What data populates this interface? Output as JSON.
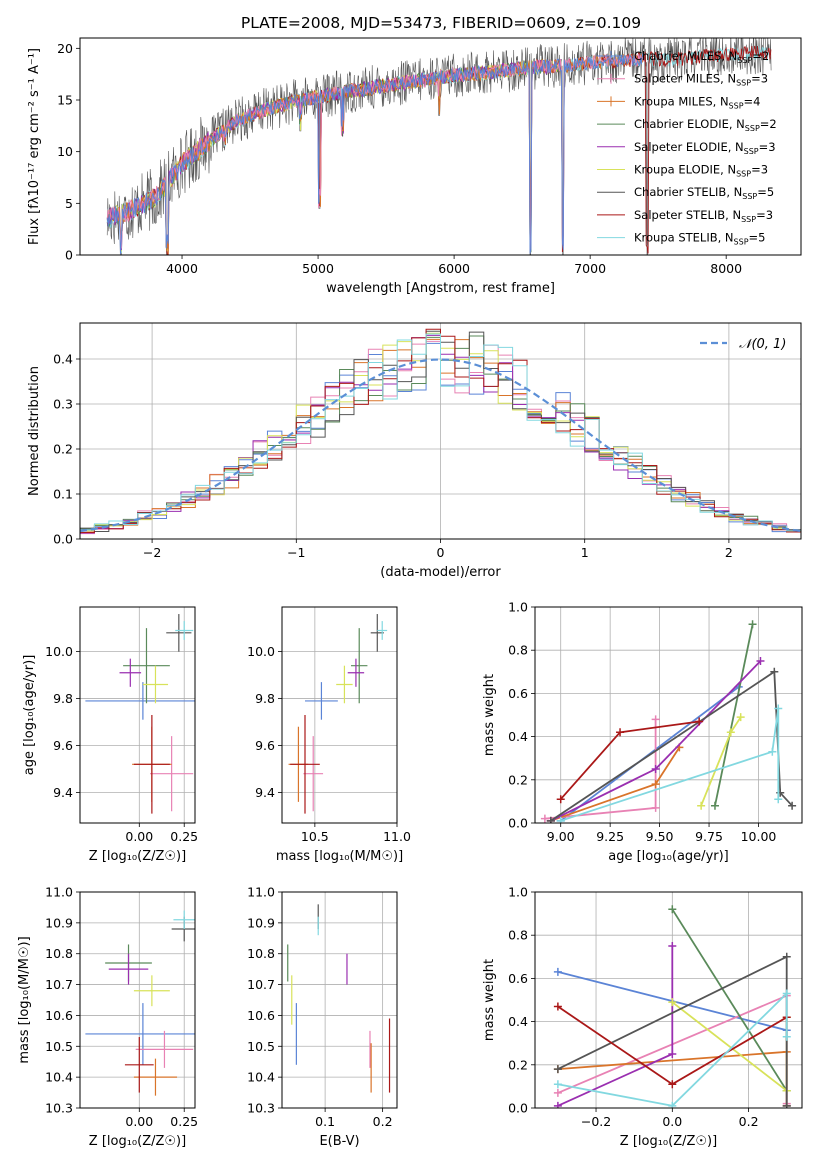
{
  "figure_title": "PLATE=2008, MJD=53473, FIBERID=0609, z=0.109",
  "colors": {
    "Chabrier MILES": "#5b84d6",
    "Salpeter MILES": "#e882b4",
    "Kroupa MILES": "#d9742a",
    "Chabrier ELODIE": "#5a8a5a",
    "Salpeter ELODIE": "#9a2fb0",
    "Kroupa ELODIE": "#d8e25a",
    "Chabrier STELIB": "#555555",
    "Salpeter STELIB": "#aa1818",
    "Kroupa STELIB": "#82d8e0",
    "gaussian": "#5b8fd6",
    "grid": "#b0b0b0"
  },
  "chart_data": [
    {
      "id": "spectrum",
      "type": "line",
      "title": "PLATE=2008, MJD=53473, FIBERID=0609, z=0.109",
      "xlabel": "wavelength [Angstrom, rest frame]",
      "ylabel": "Flux [fλ10⁻¹⁷ erg cm⁻² s⁻¹ A⁻¹]",
      "xlim": [
        3250,
        8550
      ],
      "ylim": [
        0,
        21
      ],
      "xticks": [
        4000,
        5000,
        6000,
        7000,
        8000
      ],
      "yticks": [
        0,
        5,
        10,
        15,
        20
      ],
      "grid": false,
      "legend_position": "right",
      "legend": [
        "Chabrier MILES, N_SSP=2",
        "Salpeter MILES, N_SSP=3",
        "Kroupa MILES, N_SSP=4",
        "Chabrier ELODIE, N_SSP=2",
        "Salpeter ELODIE, N_SSP=3",
        "Kroupa ELODIE, N_SSP=3",
        "Chabrier STELIB, N_SSP=5",
        "Salpeter STELIB, N_SSP=3",
        "Kroupa STELIB, N_SSP=5"
      ],
      "legend_display": [
        "Chabrier MILES, N",
        "Salpeter MILES, N",
        "Kroupa MILES, N",
        "Chabrier ELODIE, N",
        "Salpeter ELODIE, N",
        "Kroupa ELODIE, N",
        "Chabrier STELIB, N",
        "Salpeter STELIB, N",
        "Kroupa STELIB, N"
      ],
      "legend_sub": "SSP",
      "legend_counts": [
        "=2",
        "=3",
        "=4",
        "=2",
        "=3",
        "=3",
        "=5",
        "=3",
        "=5"
      ],
      "continuum": {
        "x": [
          3450,
          3600,
          3800,
          4000,
          4200,
          4400,
          4600,
          4800,
          5000,
          5200,
          5400,
          5600,
          5800,
          6000,
          6200,
          6400,
          6600,
          6800,
          7000,
          7200,
          7400,
          7600,
          7800,
          8000,
          8200,
          8330
        ],
        "y": [
          3.5,
          4.2,
          5.5,
          8.8,
          11.0,
          13.0,
          14.0,
          14.8,
          15.3,
          15.8,
          16.2,
          16.6,
          17.0,
          17.4,
          17.6,
          17.9,
          18.2,
          18.3,
          18.6,
          18.8,
          19.0,
          18.9,
          19.2,
          19.4,
          19.6,
          19.5
        ]
      },
      "dips": [
        {
          "x": 3550,
          "y": 0
        },
        {
          "x": 3890,
          "y": 0
        },
        {
          "x": 4310,
          "y": 10.5
        },
        {
          "x": 4870,
          "y": 12.0
        },
        {
          "x": 5010,
          "y": 4.5
        },
        {
          "x": 5180,
          "y": 11.5
        },
        {
          "x": 5890,
          "y": 13.5
        },
        {
          "x": 6560,
          "y": 0
        },
        {
          "x": 6800,
          "y": 0
        },
        {
          "x": 7420,
          "y": 0
        }
      ]
    },
    {
      "id": "residuals",
      "type": "histogram",
      "xlabel": "(data-model)/error",
      "ylabel": "Normed distribution",
      "xlim": [
        -2.5,
        2.5
      ],
      "ylim": [
        0,
        0.48
      ],
      "xticks": [
        -2,
        -1,
        0,
        1,
        2
      ],
      "yticks": [
        0.0,
        0.1,
        0.2,
        0.3,
        0.4
      ],
      "grid": true,
      "legend": [
        "𝒩(0, 1)"
      ],
      "legend_position": "top-right",
      "bin_width": 0.1,
      "bin_start": -2.5
    },
    {
      "id": "age_vs_Z",
      "type": "errorbar",
      "xlabel": "Z [log₁₀(Z/Z☉)]",
      "ylabel": "age  [log₁₀(age/yr)]",
      "xlim": [
        -0.33,
        0.31
      ],
      "ylim": [
        9.27,
        10.19
      ],
      "xticks": [
        0.0,
        0.25
      ],
      "yticks": [
        9.4,
        9.6,
        9.8,
        10.0
      ],
      "grid": true,
      "points": [
        {
          "model": "Chabrier MILES",
          "x": 0.02,
          "y": 9.79,
          "xerr": 0.32,
          "yerr": 0.08
        },
        {
          "model": "Salpeter MILES",
          "x": 0.18,
          "y": 9.48,
          "xerr": 0.12,
          "yerr": 0.16
        },
        {
          "model": "Kroupa MILES",
          "x": 0.07,
          "y": 9.52,
          "xerr": 0.11,
          "yerr": 0.16
        },
        {
          "model": "Chabrier ELODIE",
          "x": 0.04,
          "y": 9.94,
          "xerr": 0.13,
          "yerr": 0.16
        },
        {
          "model": "Salpeter ELODIE",
          "x": -0.05,
          "y": 9.91,
          "xerr": 0.06,
          "yerr": 0.06
        },
        {
          "model": "Kroupa ELODIE",
          "x": 0.09,
          "y": 9.86,
          "xerr": 0.07,
          "yerr": 0.08
        },
        {
          "model": "Chabrier STELIB",
          "x": 0.22,
          "y": 10.08,
          "xerr": 0.07,
          "yerr": 0.08
        },
        {
          "model": "Salpeter STELIB",
          "x": 0.07,
          "y": 9.52,
          "xerr": 0.1,
          "yerr": 0.21
        },
        {
          "model": "Kroupa STELIB",
          "x": 0.25,
          "y": 10.09,
          "xerr": 0.05,
          "yerr": 0.04
        }
      ]
    },
    {
      "id": "age_vs_mass",
      "type": "errorbar",
      "xlabel": "mass [log₁₀(M/M☉)]",
      "ylabel": "",
      "xlim": [
        10.3,
        11.0
      ],
      "ylim": [
        9.27,
        10.19
      ],
      "xticks": [
        10.5,
        11.0
      ],
      "yticks": [
        9.4,
        9.6,
        9.8,
        10.0
      ],
      "grid": true,
      "points": [
        {
          "model": "Chabrier MILES",
          "x": 10.54,
          "y": 9.79,
          "xerr": 0.1,
          "yerr": 0.08
        },
        {
          "model": "Salpeter MILES",
          "x": 10.49,
          "y": 9.48,
          "xerr": 0.06,
          "yerr": 0.16
        },
        {
          "model": "Kroupa MILES",
          "x": 10.4,
          "y": 9.52,
          "xerr": 0.06,
          "yerr": 0.16
        },
        {
          "model": "Chabrier ELODIE",
          "x": 10.77,
          "y": 9.94,
          "xerr": 0.05,
          "yerr": 0.16
        },
        {
          "model": "Salpeter ELODIE",
          "x": 10.75,
          "y": 9.91,
          "xerr": 0.05,
          "yerr": 0.06
        },
        {
          "model": "Kroupa ELODIE",
          "x": 10.68,
          "y": 9.86,
          "xerr": 0.05,
          "yerr": 0.08
        },
        {
          "model": "Chabrier STELIB",
          "x": 10.88,
          "y": 10.08,
          "xerr": 0.04,
          "yerr": 0.08
        },
        {
          "model": "Salpeter STELIB",
          "x": 10.44,
          "y": 9.52,
          "xerr": 0.09,
          "yerr": 0.21
        },
        {
          "model": "Kroupa STELIB",
          "x": 10.91,
          "y": 10.09,
          "xerr": 0.03,
          "yerr": 0.04
        }
      ]
    },
    {
      "id": "massweight_vs_age",
      "type": "line",
      "xlabel": "age  [log₁₀(age/yr)]",
      "ylabel": "mass weight",
      "xlim": [
        8.87,
        10.22
      ],
      "ylim": [
        0,
        1.0
      ],
      "xticks": [
        9.0,
        9.25,
        9.5,
        9.75,
        10.0
      ],
      "yticks": [
        0.0,
        0.2,
        0.4,
        0.6,
        0.8,
        1.0
      ],
      "grid": true,
      "series": [
        {
          "model": "Chabrier MILES",
          "x": [
            9.0,
            9.9
          ],
          "y": [
            0.01,
            0.63
          ]
        },
        {
          "model": "Salpeter MILES",
          "x": [
            8.92,
            9.48,
            9.48
          ],
          "y": [
            0.02,
            0.07,
            0.48
          ]
        },
        {
          "model": "Kroupa MILES",
          "x": [
            8.95,
            9.48,
            9.6
          ],
          "y": [
            0.01,
            0.18,
            0.35
          ]
        },
        {
          "model": "Chabrier ELODIE",
          "x": [
            9.78,
            9.97
          ],
          "y": [
            0.08,
            0.92
          ]
        },
        {
          "model": "Salpeter ELODIE",
          "x": [
            8.95,
            9.48,
            10.01
          ],
          "y": [
            0.01,
            0.25,
            0.75
          ]
        },
        {
          "model": "Kroupa ELODIE",
          "x": [
            9.71,
            9.86,
            9.91
          ],
          "y": [
            0.08,
            0.42,
            0.49
          ]
        },
        {
          "model": "Chabrier STELIB",
          "x": [
            8.95,
            10.08,
            10.11,
            10.17
          ],
          "y": [
            0.01,
            0.7,
            0.14,
            0.08
          ]
        },
        {
          "model": "Salpeter STELIB",
          "x": [
            9.0,
            9.3,
            9.7
          ],
          "y": [
            0.11,
            0.42,
            0.47
          ]
        },
        {
          "model": "Kroupa STELIB",
          "x": [
            9.0,
            10.07,
            10.1,
            10.1
          ],
          "y": [
            0.01,
            0.33,
            0.53,
            0.11
          ]
        }
      ]
    },
    {
      "id": "mass_vs_Z",
      "type": "errorbar",
      "xlabel": "Z [log₁₀(Z/Z☉)]",
      "ylabel": "mass [log₁₀(M/M☉)]",
      "xlim": [
        -0.33,
        0.31
      ],
      "ylim": [
        10.3,
        11.0
      ],
      "xticks": [
        0.0,
        0.25
      ],
      "yticks": [
        10.3,
        10.4,
        10.5,
        10.6,
        10.7,
        10.8,
        10.9,
        11.0
      ],
      "grid": true,
      "points": [
        {
          "model": "Chabrier MILES",
          "x": 0.02,
          "y": 10.54,
          "xerr": 0.32,
          "yerr": 0.1
        },
        {
          "model": "Salpeter MILES",
          "x": 0.14,
          "y": 10.49,
          "xerr": 0.16,
          "yerr": 0.06
        },
        {
          "model": "Kroupa MILES",
          "x": 0.09,
          "y": 10.4,
          "xerr": 0.12,
          "yerr": 0.06
        },
        {
          "model": "Chabrier ELODIE",
          "x": -0.06,
          "y": 10.77,
          "xerr": 0.13,
          "yerr": 0.06
        },
        {
          "model": "Salpeter ELODIE",
          "x": -0.06,
          "y": 10.75,
          "xerr": 0.11,
          "yerr": 0.05
        },
        {
          "model": "Kroupa ELODIE",
          "x": 0.07,
          "y": 10.68,
          "xerr": 0.1,
          "yerr": 0.05
        },
        {
          "model": "Chabrier STELIB",
          "x": 0.25,
          "y": 10.88,
          "xerr": 0.07,
          "yerr": 0.04
        },
        {
          "model": "Salpeter STELIB",
          "x": 0.0,
          "y": 10.44,
          "xerr": 0.08,
          "yerr": 0.09
        },
        {
          "model": "Kroupa STELIB",
          "x": 0.25,
          "y": 10.91,
          "xerr": 0.06,
          "yerr": 0.03
        }
      ]
    },
    {
      "id": "mass_vs_ebv",
      "type": "errorbar",
      "xlabel": "E(B-V)",
      "ylabel": "",
      "xlim": [
        0.025,
        0.225
      ],
      "ylim": [
        10.3,
        11.0
      ],
      "xticks": [
        0.1,
        0.2
      ],
      "yticks": [
        10.3,
        10.4,
        10.5,
        10.6,
        10.7,
        10.8,
        10.9,
        11.0
      ],
      "grid": true,
      "points": [
        {
          "model": "Chabrier MILES",
          "x": 0.05,
          "y": 10.54,
          "xerr": 0.0,
          "yerr": 0.1
        },
        {
          "model": "Salpeter MILES",
          "x": 0.178,
          "y": 10.49,
          "xerr": 0.0,
          "yerr": 0.06
        },
        {
          "model": "Kroupa MILES",
          "x": 0.18,
          "y": 10.43,
          "xerr": 0.0,
          "yerr": 0.08
        },
        {
          "model": "Chabrier ELODIE",
          "x": 0.035,
          "y": 10.77,
          "xerr": 0.0,
          "yerr": 0.06
        },
        {
          "model": "Salpeter ELODIE",
          "x": 0.138,
          "y": 10.75,
          "xerr": 0.0,
          "yerr": 0.05
        },
        {
          "model": "Kroupa ELODIE",
          "x": 0.042,
          "y": 10.65,
          "xerr": 0.0,
          "yerr": 0.08
        },
        {
          "model": "Chabrier STELIB",
          "x": 0.088,
          "y": 10.92,
          "xerr": 0.0,
          "yerr": 0.04
        },
        {
          "model": "Salpeter STELIB",
          "x": 0.212,
          "y": 10.47,
          "xerr": 0.0,
          "yerr": 0.12
        },
        {
          "model": "Kroupa STELIB",
          "x": 0.088,
          "y": 10.89,
          "xerr": 0.0,
          "yerr": 0.03
        }
      ]
    },
    {
      "id": "massweight_vs_Z",
      "type": "line",
      "xlabel": "Z [log₁₀(Z/Z☉)]",
      "ylabel": "mass weight",
      "xlim": [
        -0.36,
        0.34
      ],
      "ylim": [
        0,
        1.0
      ],
      "xticks": [
        -0.2,
        0.0,
        0.2
      ],
      "yticks": [
        0.0,
        0.2,
        0.4,
        0.6,
        0.8,
        1.0
      ],
      "grid": true,
      "series": [
        {
          "model": "Chabrier MILES",
          "x": [
            -0.3,
            0.3,
            0.3
          ],
          "y": [
            0.63,
            0.36,
            0.01
          ]
        },
        {
          "model": "Salpeter MILES",
          "x": [
            -0.3,
            0.3,
            0.3
          ],
          "y": [
            0.07,
            0.52,
            0.02
          ]
        },
        {
          "model": "Kroupa MILES",
          "x": [
            -0.3,
            0.3,
            0.3
          ],
          "y": [
            0.18,
            0.26,
            0.01
          ]
        },
        {
          "model": "Chabrier ELODIE",
          "x": [
            0.0,
            0.3
          ],
          "y": [
            0.92,
            0.08
          ]
        },
        {
          "model": "Salpeter ELODIE",
          "x": [
            -0.3,
            0.0,
            0.0
          ],
          "y": [
            0.01,
            0.25,
            0.75
          ]
        },
        {
          "model": "Kroupa ELODIE",
          "x": [
            0.0,
            0.3,
            0.3
          ],
          "y": [
            0.49,
            0.08,
            0.42
          ]
        },
        {
          "model": "Chabrier STELIB",
          "x": [
            -0.3,
            0.3,
            0.3
          ],
          "y": [
            0.18,
            0.7,
            0.01
          ]
        },
        {
          "model": "Salpeter STELIB",
          "x": [
            -0.3,
            0.0,
            0.3
          ],
          "y": [
            0.47,
            0.11,
            0.42
          ]
        },
        {
          "model": "Kroupa STELIB",
          "x": [
            -0.3,
            0.0,
            0.3,
            0.3
          ],
          "y": [
            0.11,
            0.01,
            0.53,
            0.33
          ]
        }
      ]
    }
  ]
}
